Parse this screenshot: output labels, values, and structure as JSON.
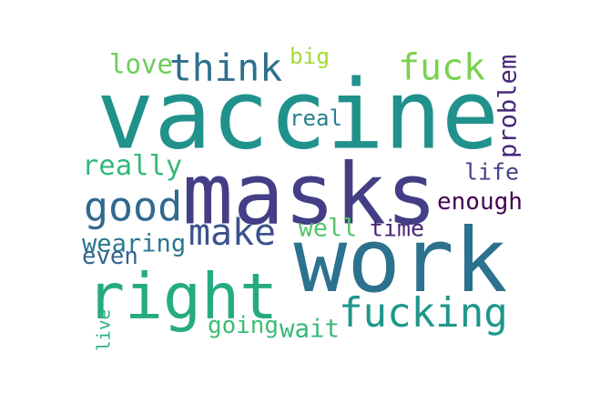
{
  "words": [
    {
      "text": "vaccine",
      "color": "#21918c"
    },
    {
      "text": "masks",
      "color": "#433e85"
    },
    {
      "text": "work",
      "color": "#2c728e"
    },
    {
      "text": "right",
      "color": "#25ab82"
    },
    {
      "text": "fucking",
      "color": "#1f978b"
    },
    {
      "text": "think",
      "color": "#2e6f8e"
    },
    {
      "text": "fuck",
      "color": "#7ad151"
    },
    {
      "text": "good",
      "color": "#30698e"
    },
    {
      "text": "make",
      "color": "#3b528b"
    },
    {
      "text": "love",
      "color": "#6ccd5a"
    },
    {
      "text": "big",
      "color": "#a5db36"
    },
    {
      "text": "problem",
      "color": "#482878"
    },
    {
      "text": "real",
      "color": "#26828e"
    },
    {
      "text": "really",
      "color": "#35b779"
    },
    {
      "text": "life",
      "color": "#414487"
    },
    {
      "text": "enough",
      "color": "#440154"
    },
    {
      "text": "time",
      "color": "#482475"
    },
    {
      "text": "well",
      "color": "#54c568"
    },
    {
      "text": "wearing",
      "color": "#2a788e"
    },
    {
      "text": "even",
      "color": "#33638d"
    },
    {
      "text": "going",
      "color": "#3dbc74"
    },
    {
      "text": "wait",
      "color": "#37b878"
    },
    {
      "text": "live",
      "color": "#2db27d"
    }
  ]
}
